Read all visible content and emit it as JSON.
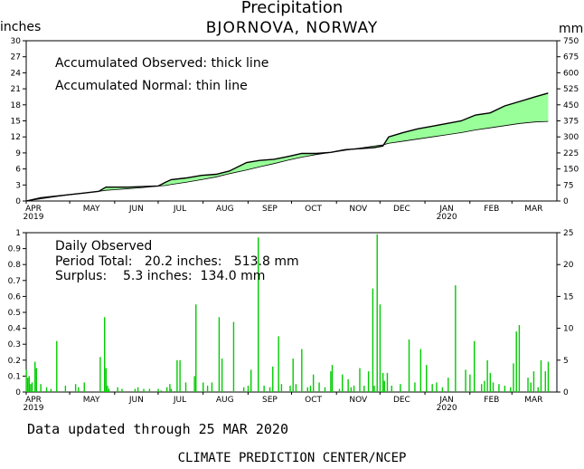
{
  "title": "Precipitation",
  "subtitle": "BJORNOVA, NORWAY",
  "unit_left": "inches",
  "unit_right": "mm",
  "top_panel": {
    "legend_1": "Accumulated Observed: thick line",
    "legend_2": "Accumulated Normal: thin line"
  },
  "bottom_panel": {
    "line_1": "Daily Observed",
    "line_2": "Period Total:   20.2 inches:   513.8 mm",
    "line_3": "Surplus:    5.3 inches:  134.0 mm"
  },
  "footer_1": "Data updated through 25 MAR 2020",
  "footer_2": "CLIMATE PREDICTION CENTER/NCEP",
  "colors": {
    "fill": "#99ff99",
    "bars": "#00cc00",
    "axis": "#000000"
  },
  "chart_data": [
    {
      "type": "area",
      "title": "Precipitation",
      "ylabel": "inches",
      "y2label": "mm",
      "x_tick_labels": [
        "APR",
        "MAY",
        "JUN",
        "JUL",
        "AUG",
        "SEP",
        "OCT",
        "NOV",
        "DEC",
        "JAN",
        "FEB",
        "MAR"
      ],
      "x_year_labels": {
        "APR": "2019",
        "JAN": "2020"
      },
      "ylim": [
        0,
        30
      ],
      "y_ticks": [
        0,
        3,
        6,
        9,
        12,
        15,
        18,
        21,
        24,
        27,
        30
      ],
      "y2lim": [
        0,
        750
      ],
      "y2_ticks": [
        0,
        75,
        150,
        225,
        300,
        375,
        450,
        525,
        600,
        675,
        750
      ],
      "grid": false,
      "x_days": [
        0,
        10,
        20,
        30,
        40,
        50,
        55,
        60,
        70,
        80,
        91,
        96,
        100,
        110,
        121,
        131,
        140,
        152,
        161,
        171,
        180,
        190,
        200,
        210,
        220,
        230,
        240,
        246,
        250,
        260,
        270,
        280,
        290,
        300,
        310,
        320,
        330,
        340,
        351,
        360
      ],
      "series": [
        {
          "name": "Accumulated Observed",
          "values": [
            0.0,
            0.6,
            0.9,
            1.2,
            1.5,
            1.8,
            2.6,
            2.6,
            2.6,
            2.7,
            2.8,
            3.5,
            4.0,
            4.3,
            4.8,
            5.0,
            5.6,
            7.2,
            7.6,
            7.8,
            8.3,
            8.9,
            8.9,
            9.1,
            9.6,
            9.8,
            10.0,
            10.3,
            12.0,
            12.8,
            13.5,
            14.0,
            14.5,
            15.0,
            16.1,
            16.5,
            17.8,
            18.6,
            19.5,
            20.2
          ]
        },
        {
          "name": "Accumulated Normal",
          "values": [
            0.0,
            0.4,
            0.8,
            1.2,
            1.5,
            1.8,
            2.0,
            2.1,
            2.3,
            2.5,
            2.8,
            2.9,
            3.1,
            3.5,
            4.0,
            4.5,
            5.1,
            5.8,
            6.4,
            7.0,
            7.6,
            8.2,
            8.7,
            9.1,
            9.5,
            9.9,
            10.3,
            10.5,
            10.8,
            11.2,
            11.6,
            12.0,
            12.4,
            12.8,
            13.3,
            13.7,
            14.1,
            14.5,
            14.8,
            14.9
          ]
        }
      ]
    },
    {
      "type": "bar",
      "title": "Daily Observed",
      "ylabel": "inches",
      "y2label": "mm",
      "x_tick_labels": [
        "APR",
        "MAY",
        "JUN",
        "JUL",
        "AUG",
        "SEP",
        "OCT",
        "NOV",
        "DEC",
        "JAN",
        "FEB",
        "MAR"
      ],
      "x_year_labels": {
        "APR": "2019",
        "JAN": "2020"
      },
      "ylim": [
        0,
        1
      ],
      "y_ticks": [
        0,
        0.1,
        0.2,
        0.3,
        0.4,
        0.5,
        0.6,
        0.7,
        0.8,
        0.9,
        1
      ],
      "y2lim": [
        0,
        25
      ],
      "y2_ticks": [
        0,
        5,
        10,
        15,
        20,
        25
      ],
      "grid": false,
      "days": [
        0,
        1,
        2,
        3,
        4,
        6,
        7,
        10,
        14,
        17,
        21,
        27,
        34,
        36,
        40,
        51,
        54,
        55,
        56,
        57,
        63,
        66,
        75,
        77,
        81,
        85,
        91,
        93,
        97,
        99,
        100,
        104,
        106,
        110,
        116,
        117,
        122,
        125,
        128,
        133,
        135,
        143,
        150,
        153,
        155,
        160,
        164,
        168,
        170,
        174,
        176,
        182,
        184,
        186,
        190,
        194,
        196,
        198,
        202,
        206,
        210,
        211,
        216,
        218,
        222,
        224,
        226,
        230,
        233,
        236,
        239,
        240,
        242,
        244,
        246,
        247,
        249,
        252,
        258,
        264,
        268,
        272,
        276,
        280,
        283,
        287,
        291,
        296,
        303,
        306,
        309,
        314,
        316,
        318,
        320,
        322,
        326,
        330,
        334,
        336,
        338,
        340,
        346,
        348,
        350,
        353,
        355,
        358,
        360
      ],
      "values": [
        0.14,
        0.09,
        0.1,
        0.05,
        0.06,
        0.19,
        0.15,
        0.05,
        0.03,
        0.02,
        0.32,
        0.04,
        0.05,
        0.03,
        0.06,
        0.22,
        0.47,
        0.15,
        0.04,
        0.02,
        0.03,
        0.02,
        0.02,
        0.03,
        0.02,
        0.02,
        0.02,
        0.01,
        0.03,
        0.05,
        0.02,
        0.2,
        0.2,
        0.06,
        0.1,
        0.55,
        0.06,
        0.04,
        0.06,
        0.47,
        0.21,
        0.44,
        0.03,
        0.04,
        0.14,
        0.97,
        0.04,
        0.03,
        0.16,
        0.35,
        0.05,
        0.04,
        0.21,
        0.05,
        0.27,
        0.03,
        0.04,
        0.11,
        0.06,
        0.03,
        0.13,
        0.17,
        0.02,
        0.11,
        0.08,
        0.03,
        0.04,
        0.15,
        0.04,
        0.13,
        0.65,
        0.04,
        0.99,
        0.55,
        0.12,
        0.07,
        0.12,
        0.04,
        0.05,
        0.33,
        0.06,
        0.27,
        0.17,
        0.05,
        0.06,
        0.03,
        0.09,
        0.67,
        0.14,
        0.11,
        0.32,
        0.05,
        0.07,
        0.2,
        0.12,
        0.06,
        0.05,
        0.04,
        0.03,
        0.18,
        0.38,
        0.42,
        0.09,
        0.06,
        0.13,
        0.03,
        0.2,
        0.13,
        0.19
      ]
    }
  ]
}
